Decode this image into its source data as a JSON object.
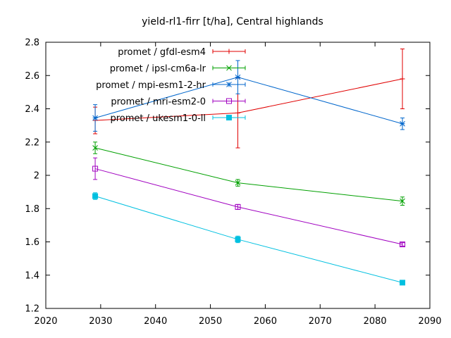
{
  "chart_data": {
    "type": "line",
    "title": "yield-rl1-firr [t/ha], Central highlands",
    "xlabel": "",
    "ylabel": "",
    "xlim": [
      2020,
      2090
    ],
    "ylim": [
      1.2,
      2.8
    ],
    "xticks": [
      2020,
      2030,
      2040,
      2050,
      2060,
      2070,
      2080,
      2090
    ],
    "yticks": [
      1.2,
      1.4,
      1.6,
      1.8,
      2,
      2.2,
      2.4,
      2.6,
      2.8
    ],
    "grid": false,
    "legend_position": "top-left",
    "series": [
      {
        "name": "promet / gfdl-esm4",
        "color": "#e00000",
        "marker": "plus",
        "x": [
          2029,
          2055,
          2085
        ],
        "y": [
          2.33,
          2.375,
          2.58
        ],
        "err": [
          0.08,
          0.21,
          0.18
        ]
      },
      {
        "name": "promet / ipsl-cm6a-lr",
        "color": "#00a000",
        "marker": "cross",
        "x": [
          2029,
          2055,
          2085
        ],
        "y": [
          2.165,
          1.955,
          1.845
        ],
        "err": [
          0.035,
          0.02,
          0.025
        ]
      },
      {
        "name": "promet / mpi-esm1-2-hr",
        "color": "#0066cc",
        "marker": "star",
        "x": [
          2029,
          2055,
          2085
        ],
        "y": [
          2.345,
          2.59,
          2.31
        ],
        "err": [
          0.08,
          0.1,
          0.035
        ]
      },
      {
        "name": "promet / mri-esm2-0",
        "color": "#a000c0",
        "marker": "open-square",
        "x": [
          2029,
          2055,
          2085
        ],
        "y": [
          2.04,
          1.81,
          1.585
        ],
        "err": [
          0.065,
          0.015,
          0.01
        ]
      },
      {
        "name": "promet / ukesm1-0-ll",
        "color": "#00c0e0",
        "marker": "filled-square",
        "x": [
          2029,
          2055,
          2085
        ],
        "y": [
          1.875,
          1.615,
          1.355
        ],
        "err": [
          0.02,
          0.02,
          0.008
        ]
      }
    ]
  }
}
